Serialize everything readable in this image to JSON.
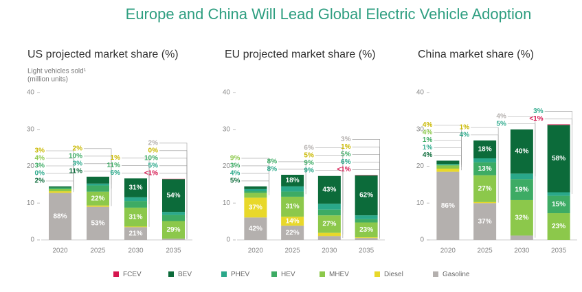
{
  "title": "Europe and China Will Lead Global Electric Vehicle Adoption",
  "legend": [
    {
      "name": "FCEV",
      "color": "#d6164f"
    },
    {
      "name": "BEV",
      "color": "#0c6b3a"
    },
    {
      "name": "PHEV",
      "color": "#2aa88a"
    },
    {
      "name": "HEV",
      "color": "#3dab64"
    },
    {
      "name": "MHEV",
      "color": "#8cc84b"
    },
    {
      "name": "Diesel",
      "color": "#e8d82a"
    },
    {
      "name": "Gasoline",
      "color": "#b4b0ae"
    }
  ],
  "chart_data": [
    {
      "type": "bar",
      "stacked": true,
      "title": "US projected market share (%)",
      "ylabel": [
        "Light vehicles sold¹",
        "(million units)"
      ],
      "categories": [
        "2020",
        "2025",
        "2030",
        "2035"
      ],
      "ylim": [
        0,
        40
      ],
      "yticks": [
        0,
        10,
        20,
        30,
        40
      ],
      "series": [
        {
          "values": [
            null,
            null,
            null,
            0.08
          ],
          "share_labels": [
            null,
            null,
            null,
            "<1%"
          ]
        },
        {
          "values": [
            0.29,
            1.87,
            5.12,
            8.91
          ],
          "share_labels": [
            "2%",
            "11%",
            "31%",
            "54%"
          ]
        },
        {
          "values": [
            0,
            0.51,
            0.99,
            0.83
          ],
          "share_labels": [
            "0%",
            "3%",
            "6%",
            "5%"
          ]
        },
        {
          "values": [
            0.44,
            1.7,
            1.82,
            1.65
          ],
          "share_labels": [
            "3%",
            "10%",
            "11%",
            "10%"
          ]
        },
        {
          "values": [
            0.58,
            3.74,
            5.12,
            4.79
          ],
          "share_labels": [
            "4%",
            "22%",
            "31%",
            "29%"
          ]
        },
        {
          "values": [
            0.44,
            0.34,
            0.17,
            0
          ],
          "share_labels": [
            "3%",
            "2%",
            "1%",
            "0%"
          ]
        },
        {
          "values": [
            12.76,
            9.0,
            3.47,
            0.33
          ],
          "share_labels": [
            "88%",
            "53%",
            "21%",
            "2%"
          ]
        }
      ]
    },
    {
      "type": "bar",
      "stacked": true,
      "title": "EU projected market share (%)",
      "categories": [
        "2020",
        "2025",
        "2030",
        "2035"
      ],
      "ylim": [
        0,
        40
      ],
      "yticks": [
        0,
        10,
        20,
        30,
        40
      ],
      "series": [
        {
          "values": [
            null,
            null,
            null,
            0.09
          ],
          "share_labels": [
            null,
            null,
            null,
            "<1%"
          ]
        },
        {
          "values": [
            0.73,
            3.15,
            7.53,
            10.85
          ],
          "share_labels": [
            "5%",
            "18%",
            "43%",
            "62%"
          ]
        },
        {
          "values": [
            0.58,
            1.4,
            1.58,
            1.05
          ],
          "share_labels": [
            "4%",
            "8%",
            "9%",
            "6%"
          ]
        },
        {
          "values": [
            0.44,
            1.4,
            1.58,
            0.88
          ],
          "share_labels": [
            "3%",
            "8%",
            "9%",
            "5%"
          ]
        },
        {
          "values": [
            1.31,
            5.43,
            4.73,
            4.03
          ],
          "share_labels": [
            "9%",
            "31%",
            "27%",
            "23%"
          ]
        },
        {
          "values": [
            5.37,
            2.45,
            0.88,
            0.18
          ],
          "share_labels": [
            "37%",
            "14%",
            "5%",
            "1%"
          ]
        },
        {
          "values": [
            6.09,
            3.85,
            1.05,
            0.53
          ],
          "share_labels": [
            "42%",
            "22%",
            "6%",
            "3%"
          ]
        }
      ]
    },
    {
      "type": "bar",
      "stacked": true,
      "title": "China market share (%)",
      "categories": [
        "2020",
        "2025",
        "2030",
        "2035"
      ],
      "ylim": [
        0,
        40
      ],
      "yticks": [
        0,
        10,
        20,
        30,
        40
      ],
      "series": [
        {
          "values": [
            null,
            null,
            null,
            0.16
          ],
          "share_labels": [
            null,
            null,
            null,
            "<1%"
          ]
        },
        {
          "values": [
            0.86,
            4.86,
            12.0,
            18.27
          ],
          "share_labels": [
            "4%",
            "18%",
            "40%",
            "58%"
          ]
        },
        {
          "values": [
            0.22,
            1.08,
            1.5,
            0.95
          ],
          "share_labels": [
            "1%",
            "4%",
            "5%",
            "3%"
          ]
        },
        {
          "values": [
            0.22,
            3.51,
            5.7,
            4.73
          ],
          "share_labels": [
            "1%",
            "13%",
            "19%",
            "15%"
          ]
        },
        {
          "values": [
            0.86,
            7.29,
            9.6,
            7.25
          ],
          "share_labels": [
            "4%",
            "27%",
            "32%",
            "23%"
          ]
        },
        {
          "values": [
            0.86,
            0.27,
            null,
            null
          ],
          "share_labels": [
            "4%",
            "1%",
            null,
            null
          ]
        },
        {
          "values": [
            18.49,
            9.99,
            1.2,
            null
          ],
          "share_labels": [
            "86%",
            "37%",
            "4%",
            null
          ]
        }
      ]
    }
  ]
}
